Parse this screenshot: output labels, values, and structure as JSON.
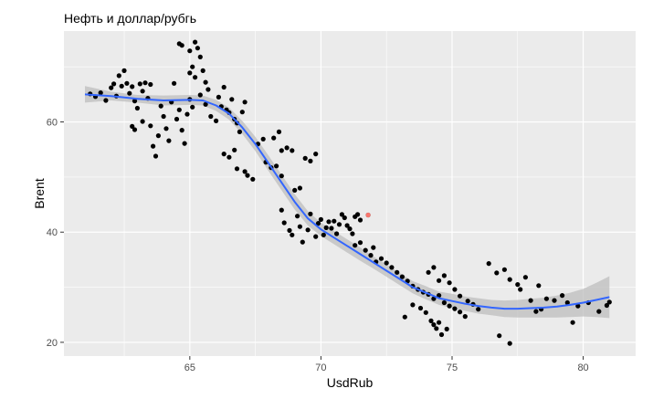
{
  "chart_data": {
    "type": "scatter",
    "title": "Нефть и доллар/рубгь",
    "xlabel": "UsdRub",
    "ylabel": "Brent",
    "xlim": [
      60.2,
      82.0
    ],
    "ylim": [
      17.5,
      76.5
    ],
    "x_ticks": [
      65,
      70,
      75,
      80
    ],
    "y_ticks": [
      20,
      40,
      60
    ],
    "grid": true,
    "background": "#EBEBEB",
    "point_color": "#000000",
    "highlight_color": "#F8766D",
    "smooth_color": "#3366FF",
    "band_color": "#BDBDBD",
    "points": [
      [
        61.2,
        65.1
      ],
      [
        61.4,
        64.6
      ],
      [
        61.6,
        65.3
      ],
      [
        61.8,
        63.9
      ],
      [
        62.0,
        66.2
      ],
      [
        62.1,
        66.9
      ],
      [
        62.2,
        64.7
      ],
      [
        62.3,
        68.4
      ],
      [
        62.4,
        66.5
      ],
      [
        62.5,
        69.3
      ],
      [
        62.6,
        67.0
      ],
      [
        62.7,
        65.2
      ],
      [
        62.8,
        66.4
      ],
      [
        62.9,
        63.8
      ],
      [
        63.0,
        62.5
      ],
      [
        63.1,
        66.9
      ],
      [
        63.2,
        65.6
      ],
      [
        63.3,
        67.1
      ],
      [
        63.4,
        64.3
      ],
      [
        63.5,
        66.8
      ],
      [
        62.8,
        59.2
      ],
      [
        62.9,
        58.6
      ],
      [
        63.2,
        60.1
      ],
      [
        63.5,
        59.3
      ],
      [
        63.6,
        55.6
      ],
      [
        63.7,
        53.8
      ],
      [
        63.8,
        57.5
      ],
      [
        63.9,
        62.9
      ],
      [
        64.0,
        61.0
      ],
      [
        64.1,
        58.8
      ],
      [
        64.2,
        56.6
      ],
      [
        64.3,
        63.6
      ],
      [
        64.4,
        67.0
      ],
      [
        64.5,
        60.5
      ],
      [
        64.6,
        62.2
      ],
      [
        64.7,
        58.5
      ],
      [
        64.8,
        56.1
      ],
      [
        64.9,
        61.4
      ],
      [
        65.0,
        64.1
      ],
      [
        65.1,
        62.7
      ],
      [
        64.6,
        74.2
      ],
      [
        64.7,
        73.9
      ],
      [
        65.0,
        72.9
      ],
      [
        65.1,
        70.0
      ],
      [
        65.2,
        74.5
      ],
      [
        65.3,
        73.4
      ],
      [
        65.4,
        71.8
      ],
      [
        65.5,
        69.3
      ],
      [
        65.6,
        67.2
      ],
      [
        65.7,
        65.9
      ],
      [
        65.0,
        68.9
      ],
      [
        65.2,
        68.1
      ],
      [
        65.4,
        64.9
      ],
      [
        65.6,
        63.2
      ],
      [
        65.8,
        61.0
      ],
      [
        66.0,
        60.2
      ],
      [
        66.1,
        64.5
      ],
      [
        66.2,
        62.8
      ],
      [
        66.3,
        66.3
      ],
      [
        66.4,
        62.2
      ],
      [
        66.5,
        61.7
      ],
      [
        66.6,
        64.1
      ],
      [
        66.7,
        60.5
      ],
      [
        66.8,
        59.8
      ],
      [
        66.9,
        58.2
      ],
      [
        67.0,
        61.8
      ],
      [
        67.1,
        63.6
      ],
      [
        66.3,
        54.2
      ],
      [
        66.5,
        53.6
      ],
      [
        66.7,
        54.9
      ],
      [
        66.8,
        51.5
      ],
      [
        67.1,
        51.0
      ],
      [
        67.2,
        50.3
      ],
      [
        67.4,
        49.6
      ],
      [
        67.6,
        56.0
      ],
      [
        67.8,
        56.9
      ],
      [
        67.9,
        52.7
      ],
      [
        68.1,
        51.7
      ],
      [
        68.3,
        52.0
      ],
      [
        68.5,
        50.2
      ],
      [
        68.2,
        57.1
      ],
      [
        68.4,
        58.2
      ],
      [
        68.5,
        54.8
      ],
      [
        68.7,
        55.3
      ],
      [
        68.9,
        54.8
      ],
      [
        69.0,
        47.6
      ],
      [
        69.2,
        48.0
      ],
      [
        69.4,
        53.4
      ],
      [
        69.6,
        52.9
      ],
      [
        69.8,
        54.2
      ],
      [
        68.5,
        44.0
      ],
      [
        68.6,
        41.7
      ],
      [
        68.8,
        40.3
      ],
      [
        68.9,
        39.5
      ],
      [
        69.1,
        42.9
      ],
      [
        69.2,
        41.0
      ],
      [
        69.3,
        38.2
      ],
      [
        69.5,
        40.4
      ],
      [
        69.6,
        43.3
      ],
      [
        69.8,
        39.2
      ],
      [
        69.9,
        41.6
      ],
      [
        70.0,
        42.3
      ],
      [
        70.1,
        39.5
      ],
      [
        70.2,
        40.8
      ],
      [
        70.3,
        41.9
      ],
      [
        70.4,
        40.7
      ],
      [
        70.5,
        42.0
      ],
      [
        70.6,
        39.7
      ],
      [
        70.7,
        41.4
      ],
      [
        70.8,
        43.2
      ],
      [
        70.9,
        42.6
      ],
      [
        71.0,
        41.2
      ],
      [
        71.1,
        40.6
      ],
      [
        71.2,
        39.7
      ],
      [
        71.3,
        42.8
      ],
      [
        71.4,
        43.2
      ],
      [
        71.5,
        42.2
      ],
      [
        71.3,
        37.6
      ],
      [
        71.5,
        38.1
      ],
      [
        71.7,
        36.7
      ],
      [
        71.9,
        35.8
      ],
      [
        72.0,
        37.2
      ],
      [
        72.1,
        34.6
      ],
      [
        72.3,
        35.2
      ],
      [
        72.5,
        34.4
      ],
      [
        72.7,
        33.6
      ],
      [
        72.9,
        32.7
      ],
      [
        73.1,
        31.9
      ],
      [
        73.3,
        31.1
      ],
      [
        73.5,
        30.2
      ],
      [
        73.7,
        29.6
      ],
      [
        73.9,
        29.1
      ],
      [
        74.1,
        28.7
      ],
      [
        74.3,
        27.9
      ],
      [
        74.5,
        28.5
      ],
      [
        74.7,
        27.2
      ],
      [
        74.9,
        26.6
      ],
      [
        75.1,
        26.1
      ],
      [
        75.3,
        25.5
      ],
      [
        75.5,
        24.7
      ],
      [
        73.2,
        24.6
      ],
      [
        73.5,
        26.8
      ],
      [
        73.8,
        26.2
      ],
      [
        74.0,
        25.4
      ],
      [
        74.2,
        23.9
      ],
      [
        74.4,
        22.5
      ],
      [
        74.6,
        21.4
      ],
      [
        74.3,
        23.2
      ],
      [
        74.5,
        23.6
      ],
      [
        74.8,
        22.4
      ],
      [
        74.1,
        32.7
      ],
      [
        74.3,
        33.6
      ],
      [
        74.5,
        31.2
      ],
      [
        74.7,
        32.1
      ],
      [
        74.9,
        30.8
      ],
      [
        75.1,
        29.6
      ],
      [
        75.3,
        28.4
      ],
      [
        75.6,
        27.5
      ],
      [
        75.8,
        26.9
      ],
      [
        76.0,
        26.0
      ],
      [
        76.4,
        34.3
      ],
      [
        76.7,
        32.6
      ],
      [
        77.0,
        33.2
      ],
      [
        77.2,
        31.4
      ],
      [
        77.5,
        30.5
      ],
      [
        77.8,
        31.8
      ],
      [
        76.8,
        21.2
      ],
      [
        77.2,
        19.8
      ],
      [
        77.6,
        29.6
      ],
      [
        78.0,
        27.6
      ],
      [
        78.2,
        25.6
      ],
      [
        78.4,
        26.0
      ],
      [
        78.6,
        27.9
      ],
      [
        78.9,
        27.6
      ],
      [
        79.2,
        28.5
      ],
      [
        79.4,
        27.2
      ],
      [
        79.6,
        23.6
      ],
      [
        79.8,
        26.6
      ],
      [
        80.2,
        27.2
      ],
      [
        80.6,
        25.6
      ],
      [
        80.9,
        26.7
      ],
      [
        81.0,
        27.3
      ],
      [
        78.3,
        30.3
      ],
      [
        71.8,
        43.1
      ]
    ],
    "highlight_points": [
      [
        71.8,
        43.1
      ]
    ],
    "smooth_line": [
      [
        61.0,
        65.0
      ],
      [
        62.0,
        64.7
      ],
      [
        63.0,
        64.2
      ],
      [
        64.0,
        63.9
      ],
      [
        65.0,
        64.0
      ],
      [
        65.5,
        63.9
      ],
      [
        66.0,
        63.0
      ],
      [
        66.5,
        61.5
      ],
      [
        67.0,
        59.0
      ],
      [
        67.5,
        56.0
      ],
      [
        68.0,
        52.5
      ],
      [
        68.5,
        49.0
      ],
      [
        69.0,
        45.5
      ],
      [
        69.5,
        42.5
      ],
      [
        70.0,
        40.5
      ],
      [
        70.5,
        39.0
      ],
      [
        71.0,
        37.5
      ],
      [
        71.5,
        36.0
      ],
      [
        72.0,
        34.5
      ],
      [
        72.5,
        33.0
      ],
      [
        73.0,
        31.5
      ],
      [
        73.5,
        30.0
      ],
      [
        74.0,
        29.0
      ],
      [
        74.5,
        28.0
      ],
      [
        75.0,
        27.5
      ],
      [
        75.5,
        27.0
      ],
      [
        76.0,
        26.6
      ],
      [
        76.5,
        26.3
      ],
      [
        77.0,
        26.1
      ],
      [
        77.5,
        26.1
      ],
      [
        78.0,
        26.2
      ],
      [
        78.5,
        26.3
      ],
      [
        79.0,
        26.5
      ],
      [
        79.5,
        26.8
      ],
      [
        80.0,
        27.2
      ],
      [
        80.5,
        27.7
      ],
      [
        81.0,
        28.2
      ]
    ],
    "confidence_band_upper": [
      [
        61.0,
        66.5
      ],
      [
        62.0,
        65.5
      ],
      [
        63.0,
        64.9
      ],
      [
        64.0,
        64.8
      ],
      [
        65.0,
        64.9
      ],
      [
        65.5,
        64.8
      ],
      [
        66.0,
        64.0
      ],
      [
        66.5,
        62.6
      ],
      [
        67.0,
        60.2
      ],
      [
        67.5,
        57.3
      ],
      [
        68.0,
        53.9
      ],
      [
        68.5,
        50.4
      ],
      [
        69.0,
        46.9
      ],
      [
        69.5,
        43.8
      ],
      [
        70.0,
        41.7
      ],
      [
        70.5,
        40.2
      ],
      [
        71.0,
        38.7
      ],
      [
        71.5,
        37.2
      ],
      [
        72.0,
        35.6
      ],
      [
        72.5,
        34.1
      ],
      [
        73.0,
        32.6
      ],
      [
        73.5,
        31.1
      ],
      [
        74.0,
        30.2
      ],
      [
        74.5,
        29.2
      ],
      [
        75.0,
        28.8
      ],
      [
        75.5,
        28.3
      ],
      [
        76.0,
        28.0
      ],
      [
        76.5,
        27.7
      ],
      [
        77.0,
        27.6
      ],
      [
        77.5,
        27.7
      ],
      [
        78.0,
        27.9
      ],
      [
        78.5,
        28.1
      ],
      [
        79.0,
        28.5
      ],
      [
        79.5,
        29.0
      ],
      [
        80.0,
        29.7
      ],
      [
        80.5,
        30.8
      ],
      [
        81.0,
        32.0
      ]
    ],
    "confidence_band_lower": [
      [
        61.0,
        63.5
      ],
      [
        62.0,
        63.9
      ],
      [
        63.0,
        63.5
      ],
      [
        64.0,
        63.0
      ],
      [
        65.0,
        63.1
      ],
      [
        65.5,
        63.0
      ],
      [
        66.0,
        62.0
      ],
      [
        66.5,
        60.4
      ],
      [
        67.0,
        57.8
      ],
      [
        67.5,
        54.7
      ],
      [
        68.0,
        51.1
      ],
      [
        68.5,
        47.6
      ],
      [
        69.0,
        44.1
      ],
      [
        69.5,
        41.2
      ],
      [
        70.0,
        39.3
      ],
      [
        70.5,
        37.8
      ],
      [
        71.0,
        36.3
      ],
      [
        71.5,
        34.8
      ],
      [
        72.0,
        33.4
      ],
      [
        72.5,
        31.9
      ],
      [
        73.0,
        30.4
      ],
      [
        73.5,
        28.9
      ],
      [
        74.0,
        27.8
      ],
      [
        74.5,
        26.8
      ],
      [
        75.0,
        26.2
      ],
      [
        75.5,
        25.7
      ],
      [
        76.0,
        25.2
      ],
      [
        76.5,
        24.9
      ],
      [
        77.0,
        24.6
      ],
      [
        77.5,
        24.5
      ],
      [
        78.0,
        24.5
      ],
      [
        78.5,
        24.5
      ],
      [
        79.0,
        24.5
      ],
      [
        79.5,
        24.6
      ],
      [
        80.0,
        24.7
      ],
      [
        80.5,
        24.6
      ],
      [
        81.0,
        24.4
      ]
    ]
  }
}
